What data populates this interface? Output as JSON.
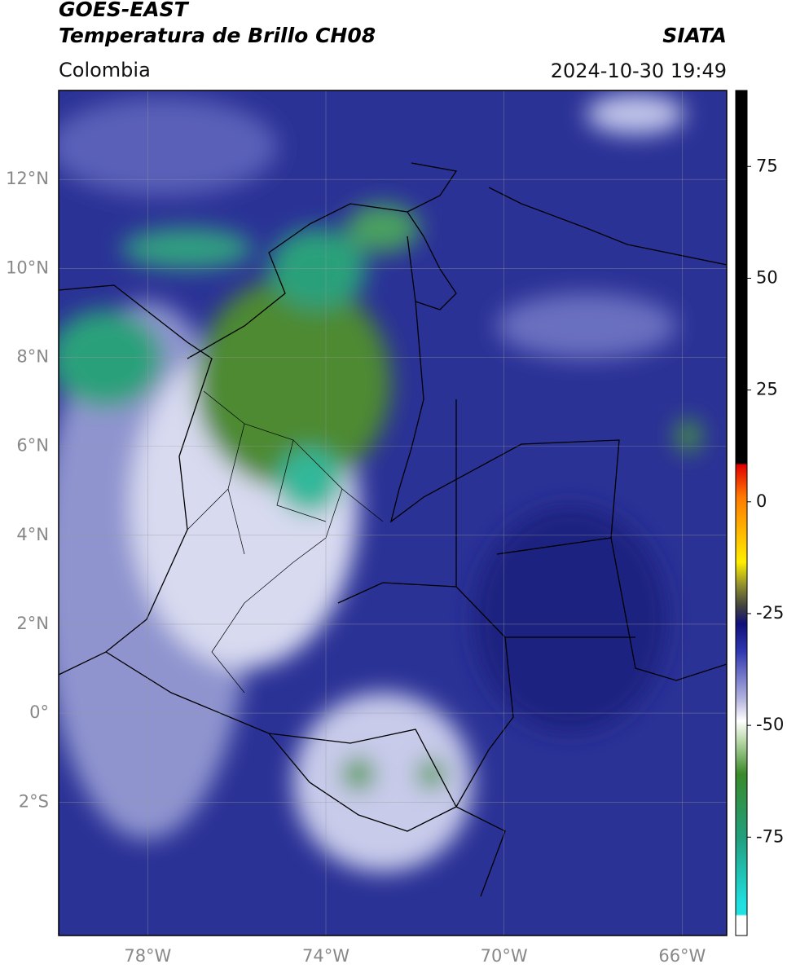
{
  "header": {
    "title": "GOES-EAST",
    "subtitle": "Temperatura de Brillo CH08",
    "source": "SIATA",
    "region": "Colombia",
    "datetime": "2024-10-30 19:49"
  },
  "map": {
    "lonlim": [
      -80,
      -65
    ],
    "latlim": [
      -5,
      14
    ],
    "grid": true,
    "lonticks": [
      {
        "value": -78,
        "label": "78°W"
      },
      {
        "value": -74,
        "label": "74°W"
      },
      {
        "value": -70,
        "label": "70°W"
      },
      {
        "value": -66,
        "label": "66°W"
      }
    ],
    "latticks": [
      {
        "value": 12,
        "label": "12°N"
      },
      {
        "value": 10,
        "label": "10°N"
      },
      {
        "value": 8,
        "label": "8°N"
      },
      {
        "value": 6,
        "label": "6°N"
      },
      {
        "value": 4,
        "label": "4°N"
      },
      {
        "value": 2,
        "label": "2°N"
      },
      {
        "value": 0,
        "label": "0°"
      },
      {
        "value": -2,
        "label": "2°S"
      }
    ]
  },
  "colorbar": {
    "lim": [
      -97,
      92
    ],
    "ticks": [
      75,
      50,
      25,
      0,
      -25,
      -50,
      -75
    ]
  }
}
